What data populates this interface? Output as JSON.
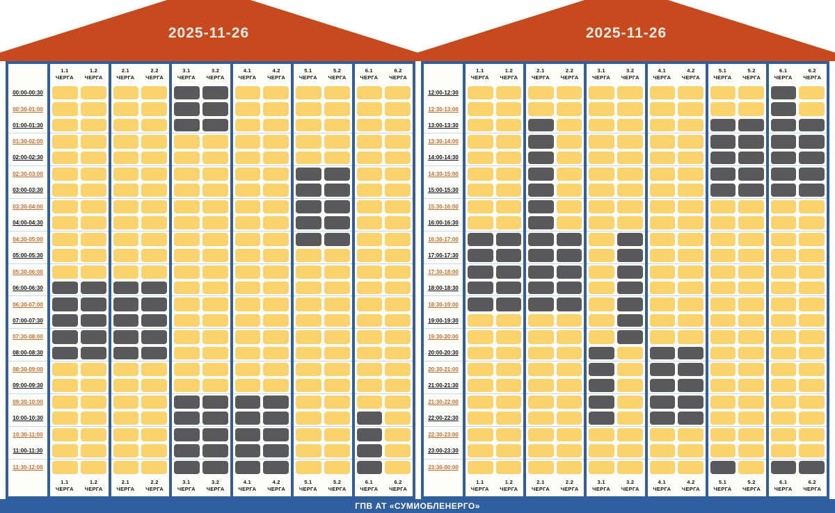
{
  "footer": {
    "label": "ГПВ АТ «СУМИОБЛЕНЕРГО»"
  },
  "queue_label": "ЧЕРГА",
  "queues": [
    "1.1",
    "1.2",
    "2.1",
    "2.2",
    "3.1",
    "3.2",
    "4.1",
    "4.2",
    "5.1",
    "5.2",
    "6.1",
    "6.2"
  ],
  "colors": {
    "roof": "#C7491E",
    "frame_blue": "#2F5F9F",
    "power_on_yellow": "#FBD36D",
    "power_off_gray": "#59595B",
    "time_label_black": "#141414",
    "time_label_orange": "#C2702F"
  },
  "panels": [
    {
      "date": "2025-11-26",
      "rows": [
        {
          "time": "00:00-00:30",
          "cells": [
            1,
            1,
            1,
            1,
            0,
            0,
            1,
            1,
            1,
            1,
            1,
            1
          ]
        },
        {
          "time": "00:30-01:00",
          "cells": [
            1,
            1,
            1,
            1,
            0,
            0,
            1,
            1,
            1,
            1,
            1,
            1
          ]
        },
        {
          "time": "01:00-01:30",
          "cells": [
            1,
            1,
            1,
            1,
            0,
            0,
            1,
            1,
            1,
            1,
            1,
            1
          ]
        },
        {
          "time": "01:30-02:00",
          "cells": [
            1,
            1,
            1,
            1,
            1,
            1,
            1,
            1,
            1,
            1,
            1,
            1
          ]
        },
        {
          "time": "02:00-02:30",
          "cells": [
            1,
            1,
            1,
            1,
            1,
            1,
            1,
            1,
            1,
            1,
            1,
            1
          ]
        },
        {
          "time": "02:30-03:00",
          "cells": [
            1,
            1,
            1,
            1,
            1,
            1,
            1,
            1,
            0,
            0,
            1,
            1
          ]
        },
        {
          "time": "03:00-03:30",
          "cells": [
            1,
            1,
            1,
            1,
            1,
            1,
            1,
            1,
            0,
            0,
            1,
            1
          ]
        },
        {
          "time": "03:30-04:00",
          "cells": [
            1,
            1,
            1,
            1,
            1,
            1,
            1,
            1,
            0,
            0,
            1,
            1
          ]
        },
        {
          "time": "04:00-04:30",
          "cells": [
            1,
            1,
            1,
            1,
            1,
            1,
            1,
            1,
            0,
            0,
            1,
            1
          ]
        },
        {
          "time": "04:30-05:00",
          "cells": [
            1,
            1,
            1,
            1,
            1,
            1,
            1,
            1,
            0,
            0,
            1,
            1
          ]
        },
        {
          "time": "05:00-05:30",
          "cells": [
            1,
            1,
            1,
            1,
            1,
            1,
            1,
            1,
            1,
            1,
            1,
            1
          ]
        },
        {
          "time": "05:30-06:00",
          "cells": [
            1,
            1,
            1,
            1,
            1,
            1,
            1,
            1,
            1,
            1,
            1,
            1
          ]
        },
        {
          "time": "06:00-06:30",
          "cells": [
            0,
            0,
            0,
            0,
            1,
            1,
            1,
            1,
            1,
            1,
            1,
            1
          ]
        },
        {
          "time": "06:30-07:00",
          "cells": [
            0,
            0,
            0,
            0,
            1,
            1,
            1,
            1,
            1,
            1,
            1,
            1
          ]
        },
        {
          "time": "07:00-07:30",
          "cells": [
            0,
            0,
            0,
            0,
            1,
            1,
            1,
            1,
            1,
            1,
            1,
            1
          ]
        },
        {
          "time": "07:30-08:00",
          "cells": [
            0,
            0,
            0,
            0,
            1,
            1,
            1,
            1,
            1,
            1,
            1,
            1
          ]
        },
        {
          "time": "08:00-08:30",
          "cells": [
            0,
            0,
            0,
            0,
            1,
            1,
            1,
            1,
            1,
            1,
            1,
            1
          ]
        },
        {
          "time": "08:30-09:00",
          "cells": [
            1,
            1,
            1,
            1,
            1,
            1,
            1,
            1,
            1,
            1,
            1,
            1
          ]
        },
        {
          "time": "09:00-09:30",
          "cells": [
            1,
            1,
            1,
            1,
            1,
            1,
            1,
            1,
            1,
            1,
            1,
            1
          ]
        },
        {
          "time": "09:30-10:00",
          "cells": [
            1,
            1,
            1,
            1,
            0,
            0,
            0,
            0,
            1,
            1,
            1,
            1
          ]
        },
        {
          "time": "10:00-10:30",
          "cells": [
            1,
            1,
            1,
            1,
            0,
            0,
            0,
            0,
            1,
            1,
            0,
            1
          ]
        },
        {
          "time": "10:30-11:00",
          "cells": [
            1,
            1,
            1,
            1,
            0,
            0,
            0,
            0,
            1,
            1,
            0,
            1
          ]
        },
        {
          "time": "11:00-11:30",
          "cells": [
            1,
            1,
            1,
            1,
            0,
            0,
            0,
            0,
            1,
            1,
            0,
            1
          ]
        },
        {
          "time": "11:30-12:00",
          "cells": [
            1,
            1,
            1,
            1,
            0,
            0,
            0,
            0,
            1,
            1,
            0,
            1
          ]
        }
      ]
    },
    {
      "date": "2025-11-26",
      "rows": [
        {
          "time": "12:00-12:30",
          "cells": [
            1,
            1,
            1,
            1,
            1,
            1,
            1,
            1,
            1,
            1,
            0,
            1
          ]
        },
        {
          "time": "12:30-13:00",
          "cells": [
            1,
            1,
            1,
            1,
            1,
            1,
            1,
            1,
            1,
            1,
            0,
            1
          ]
        },
        {
          "time": "13:00-13:30",
          "cells": [
            1,
            1,
            0,
            1,
            1,
            1,
            1,
            1,
            0,
            0,
            0,
            0
          ]
        },
        {
          "time": "13:30-14:00",
          "cells": [
            1,
            1,
            0,
            1,
            1,
            1,
            1,
            1,
            0,
            0,
            0,
            0
          ]
        },
        {
          "time": "14:00-14:30",
          "cells": [
            1,
            1,
            0,
            1,
            1,
            1,
            1,
            1,
            0,
            0,
            0,
            0
          ]
        },
        {
          "time": "14:30-15:00",
          "cells": [
            1,
            1,
            0,
            1,
            1,
            1,
            1,
            1,
            0,
            0,
            0,
            0
          ]
        },
        {
          "time": "15:00-15:30",
          "cells": [
            1,
            1,
            0,
            1,
            1,
            1,
            1,
            1,
            0,
            0,
            0,
            0
          ]
        },
        {
          "time": "15:30-16:00",
          "cells": [
            1,
            1,
            0,
            1,
            1,
            1,
            1,
            1,
            1,
            1,
            1,
            1
          ]
        },
        {
          "time": "16:00-16:30",
          "cells": [
            1,
            1,
            0,
            1,
            1,
            1,
            1,
            1,
            1,
            1,
            1,
            1
          ]
        },
        {
          "time": "16:30-17:00",
          "cells": [
            0,
            0,
            0,
            0,
            1,
            0,
            1,
            1,
            1,
            1,
            1,
            1
          ]
        },
        {
          "time": "17:00-17:30",
          "cells": [
            0,
            0,
            0,
            0,
            1,
            0,
            1,
            1,
            1,
            1,
            1,
            1
          ]
        },
        {
          "time": "17:30-18:00",
          "cells": [
            0,
            0,
            0,
            0,
            1,
            0,
            1,
            1,
            1,
            1,
            1,
            1
          ]
        },
        {
          "time": "18:00-18:30",
          "cells": [
            0,
            0,
            0,
            0,
            1,
            0,
            1,
            1,
            1,
            1,
            1,
            1
          ]
        },
        {
          "time": "18:30-19:00",
          "cells": [
            0,
            0,
            0,
            0,
            1,
            0,
            1,
            1,
            1,
            1,
            1,
            1
          ]
        },
        {
          "time": "19:00-19:30",
          "cells": [
            1,
            1,
            1,
            1,
            1,
            0,
            1,
            1,
            1,
            1,
            1,
            1
          ]
        },
        {
          "time": "19:30-20:00",
          "cells": [
            1,
            1,
            1,
            1,
            1,
            0,
            1,
            1,
            1,
            1,
            1,
            1
          ]
        },
        {
          "time": "20:00-20:30",
          "cells": [
            1,
            1,
            1,
            1,
            0,
            1,
            0,
            0,
            1,
            1,
            1,
            1
          ]
        },
        {
          "time": "20:30-21:00",
          "cells": [
            1,
            1,
            1,
            1,
            0,
            1,
            0,
            0,
            1,
            1,
            1,
            1
          ]
        },
        {
          "time": "21:00-21:30",
          "cells": [
            1,
            1,
            1,
            1,
            0,
            1,
            0,
            0,
            1,
            1,
            1,
            1
          ]
        },
        {
          "time": "21:30-22:00",
          "cells": [
            1,
            1,
            1,
            1,
            0,
            1,
            0,
            0,
            1,
            1,
            1,
            1
          ]
        },
        {
          "time": "22:00-22:30",
          "cells": [
            1,
            1,
            1,
            1,
            0,
            1,
            0,
            0,
            1,
            1,
            1,
            1
          ]
        },
        {
          "time": "22:30-23:00",
          "cells": [
            1,
            1,
            1,
            1,
            1,
            1,
            1,
            1,
            1,
            1,
            1,
            1
          ]
        },
        {
          "time": "23:00-23:30",
          "cells": [
            1,
            1,
            1,
            1,
            1,
            1,
            1,
            1,
            1,
            1,
            1,
            1
          ]
        },
        {
          "time": "23:30-00:00",
          "cells": [
            1,
            1,
            1,
            1,
            1,
            1,
            1,
            1,
            0,
            1,
            0,
            0
          ]
        }
      ]
    }
  ]
}
